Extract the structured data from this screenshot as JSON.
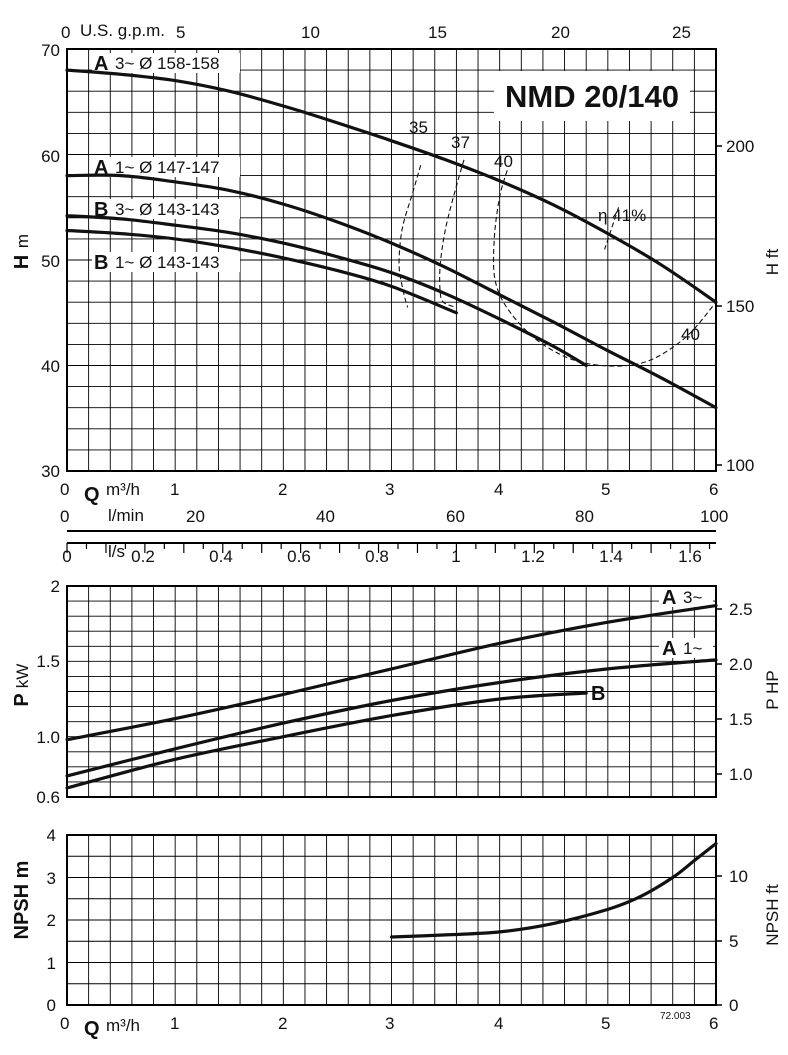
{
  "head_chart": {
    "title": "NMD 20/140",
    "left_axis": {
      "label_main": "H",
      "label_unit": "m",
      "min": 30,
      "max": 70,
      "ticks": [
        30,
        40,
        50,
        60,
        70
      ]
    },
    "right_axis": {
      "label": "H ft",
      "ticks": [
        100,
        150,
        200
      ]
    },
    "top_axis": {
      "label": "U.S. g.p.m.",
      "ticks": [
        0,
        5,
        10,
        15,
        20,
        25
      ]
    },
    "bottom_axis": {
      "label_main": "Q",
      "label_unit": "m³/h",
      "ticks": [
        0,
        1,
        2,
        3,
        4,
        5,
        6
      ]
    },
    "lmin_axis": {
      "label": "l/min",
      "ticks": [
        0,
        20,
        40,
        60,
        80,
        100
      ]
    },
    "ls_axis": {
      "label": "l/s",
      "ticks": [
        "0",
        "0.2",
        "0.4",
        "0.6",
        "0.8",
        "1",
        "1.2",
        "1.4",
        "1.6"
      ]
    },
    "curve_labels": [
      {
        "letter": "A",
        "text": "3~  Ø 158-158"
      },
      {
        "letter": "A",
        "text": "1~  Ø 147-147"
      },
      {
        "letter": "B",
        "text": "3~  Ø 143-143"
      },
      {
        "letter": "B",
        "text": "1~  Ø 143-143"
      }
    ],
    "efficiency_labels": [
      "35",
      "37",
      "40",
      "η  41%",
      "40"
    ]
  },
  "power_chart": {
    "left_axis": {
      "label_main": "P",
      "label_unit": "kW",
      "ticks": [
        "0.6",
        "1.0",
        "1.5",
        "2"
      ]
    },
    "right_axis": {
      "label": "P HP",
      "ticks": [
        "1.0",
        "1.5",
        "2.0",
        "2.5"
      ]
    },
    "curve_labels": [
      {
        "letter": "A",
        "text": "3~"
      },
      {
        "letter": "A",
        "text": "1~"
      },
      {
        "letter": "B",
        "text": ""
      }
    ]
  },
  "npsh_chart": {
    "left_axis": {
      "label": "NPSH m",
      "ticks": [
        0,
        1,
        2,
        3,
        4
      ]
    },
    "right_axis": {
      "label": "NPSH ft",
      "ticks": [
        0,
        5,
        10
      ]
    },
    "bottom_axis": {
      "label_main": "Q",
      "label_unit": "m³/h",
      "ticks": [
        0,
        1,
        2,
        3,
        4,
        5,
        6
      ]
    },
    "code": "72.003"
  },
  "chart_data": [
    {
      "type": "line",
      "title": "NMD 20/140",
      "xlabel": "Q m³/h",
      "ylabel": "H m",
      "xlim": [
        0,
        6
      ],
      "ylim": [
        30,
        70
      ],
      "grid": true,
      "series": [
        {
          "name": "A 3~ Ø 158-158",
          "x": [
            0,
            0.5,
            1,
            1.5,
            2,
            2.5,
            3,
            3.5,
            4,
            4.5,
            5,
            5.5,
            6
          ],
          "y": [
            68,
            67.6,
            67,
            66,
            64.6,
            63,
            61.3,
            59.5,
            57.5,
            55.2,
            52.5,
            49.5,
            46
          ]
        },
        {
          "name": "A 1~ Ø 147-147",
          "x": [
            0,
            0.5,
            1,
            1.5,
            2,
            2.5,
            3,
            3.5,
            4,
            4.5,
            5,
            5.5,
            6
          ],
          "y": [
            58,
            58,
            57.4,
            56.6,
            55.3,
            53.6,
            51.6,
            49.3,
            46.7,
            44.1,
            41.4,
            38.8,
            36
          ]
        },
        {
          "name": "B 3~ Ø 143-143",
          "x": [
            0,
            0.5,
            1,
            1.5,
            2,
            2.5,
            3,
            3.5,
            4,
            4.5,
            4.8
          ],
          "y": [
            54.2,
            53.9,
            53.3,
            52.6,
            51.6,
            50.3,
            48.8,
            46.8,
            44.4,
            41.8,
            40
          ]
        },
        {
          "name": "B 1~ Ø 143-143",
          "x": [
            0,
            0.5,
            1,
            1.5,
            2,
            2.5,
            3,
            3.6
          ],
          "y": [
            52.8,
            52.5,
            52,
            51.2,
            50.2,
            49,
            47.5,
            45
          ]
        }
      ],
      "efficiency_curves": [
        {
          "name": "35",
          "x": [
            3.27,
            3.2,
            3.1,
            3.07,
            3.11,
            3.15
          ],
          "y": [
            59,
            56.5,
            53,
            49.5,
            47,
            45.5
          ]
        },
        {
          "name": "37",
          "x": [
            3.67,
            3.6,
            3.5,
            3.45,
            3.45,
            3.48,
            3.6
          ],
          "y": [
            59.5,
            57,
            53,
            49.5,
            47,
            46,
            45.5
          ]
        },
        {
          "name": "40",
          "x": [
            4.07,
            4,
            3.95,
            3.96,
            4.1,
            4.4,
            4.8,
            5.3,
            5.7,
            6
          ],
          "y": [
            58.5,
            56,
            52,
            48,
            45,
            42,
            40.2,
            40.2,
            42.5,
            46
          ]
        },
        {
          "name": "η 41%",
          "x": [
            5.1,
            4.97
          ],
          "y": [
            55,
            51
          ]
        }
      ]
    },
    {
      "type": "line",
      "xlabel": "Q m³/h",
      "ylabel": "P kW",
      "xlim": [
        0,
        6
      ],
      "ylim": [
        0.6,
        2
      ],
      "grid": true,
      "series": [
        {
          "name": "A 3~",
          "x": [
            0,
            1,
            2,
            3,
            4,
            5,
            6
          ],
          "y": [
            0.98,
            1.12,
            1.28,
            1.45,
            1.62,
            1.76,
            1.87
          ]
        },
        {
          "name": "A 1~",
          "x": [
            0,
            1,
            2,
            3,
            4,
            5,
            6
          ],
          "y": [
            0.74,
            0.92,
            1.09,
            1.24,
            1.36,
            1.45,
            1.51
          ]
        },
        {
          "name": "B",
          "x": [
            0,
            1,
            2,
            3,
            4,
            4.8
          ],
          "y": [
            0.66,
            0.85,
            1.0,
            1.14,
            1.25,
            1.29
          ]
        }
      ]
    },
    {
      "type": "line",
      "xlabel": "Q m³/h",
      "ylabel": "NPSH m",
      "xlim": [
        0,
        6
      ],
      "ylim": [
        0,
        4
      ],
      "grid": true,
      "series": [
        {
          "name": "NPSH",
          "x": [
            3,
            3.5,
            4,
            4.5,
            5,
            5.3,
            5.6,
            5.8,
            6
          ],
          "y": [
            1.6,
            1.65,
            1.72,
            1.92,
            2.25,
            2.55,
            3.0,
            3.4,
            3.8
          ]
        }
      ]
    }
  ]
}
